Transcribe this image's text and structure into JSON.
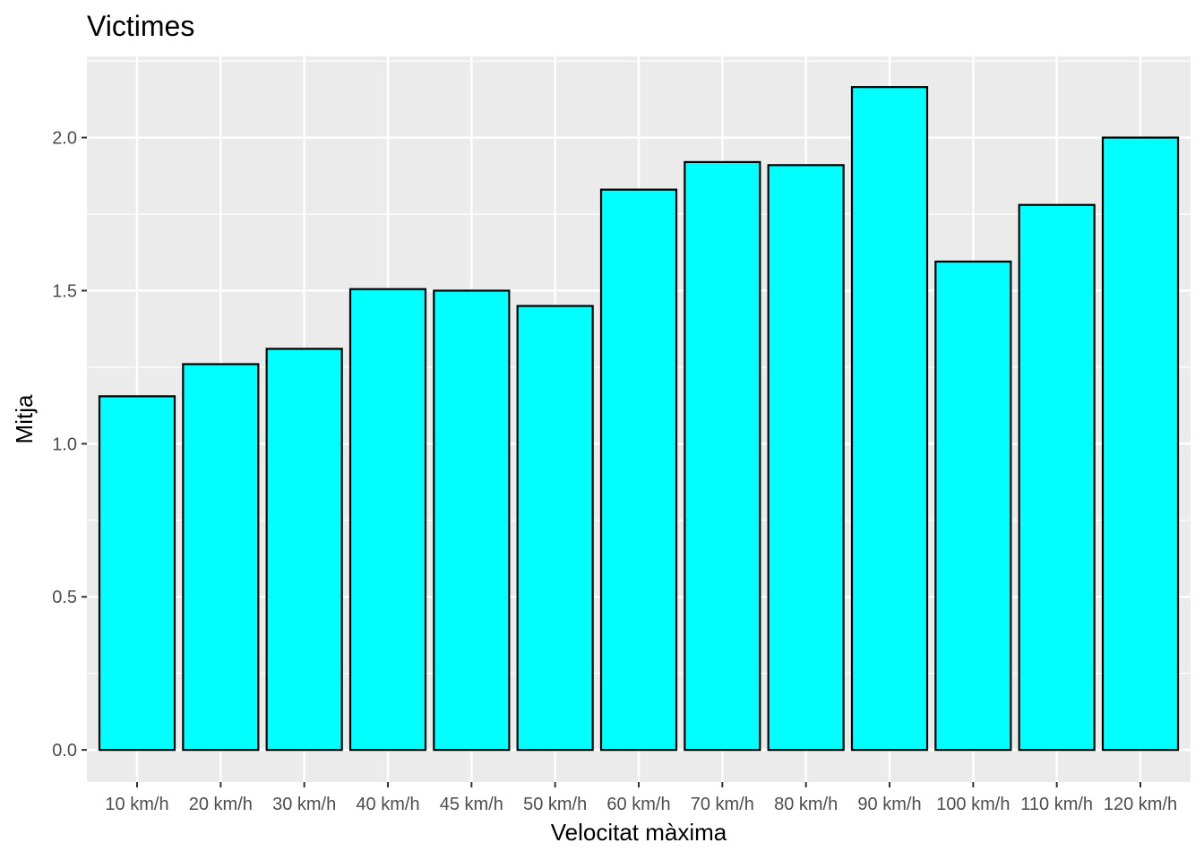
{
  "chart_data": {
    "type": "bar",
    "title": "Victimes",
    "xlabel": "Velocitat màxima",
    "ylabel": "Mitja",
    "categories": [
      "10 km/h",
      "20 km/h",
      "30 km/h",
      "40 km/h",
      "45 km/h",
      "50 km/h",
      "60 km/h",
      "70 km/h",
      "80 km/h",
      "90 km/h",
      "100 km/h",
      "110 km/h",
      "120 km/h"
    ],
    "values": [
      1.155,
      1.26,
      1.31,
      1.505,
      1.5,
      1.45,
      1.83,
      1.92,
      1.91,
      2.165,
      1.595,
      1.78,
      2.0
    ],
    "ylim": [
      -0.105,
      2.265
    ],
    "yticks": [
      0.0,
      0.5,
      1.0,
      1.5,
      2.0
    ],
    "ytick_labels": [
      "0.0",
      "0.5",
      "1.0",
      "1.5",
      "2.0"
    ],
    "grid": true,
    "legend": "none",
    "colors": {
      "bar_fill": "#00ffff",
      "bar_stroke": "#000000",
      "panel_background": "#ebebeb",
      "grid": "#ffffff"
    }
  }
}
